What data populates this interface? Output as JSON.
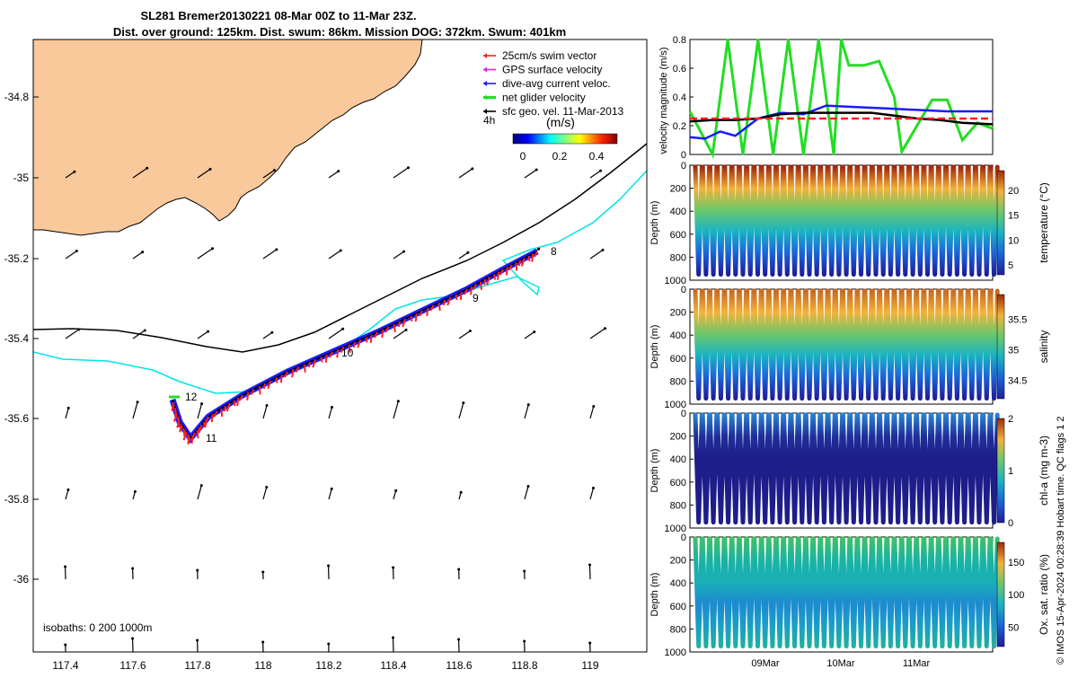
{
  "title": {
    "line1": "SL281 Bremer20130221 08-Mar 00Z to 11-Mar 23Z.",
    "line2": "Dist. over ground: 125km. Dist. swum: 86km. Mission DOG: 372km. Swum: 401km"
  },
  "map": {
    "xticks": [
      "117.4",
      "117.6",
      "117.8",
      "118",
      "118.2",
      "118.4",
      "118.6",
      "118.8",
      "119"
    ],
    "yticks": [
      "-34.8",
      "-35",
      "-35.2",
      "-35.4",
      "-35.6",
      "-35.8",
      "-36"
    ],
    "isobaths_label": "isobaths: 0   200  1000m",
    "waypoints": [
      "8",
      "9",
      "10",
      "11",
      "12"
    ],
    "land_color": "#f9c99b",
    "isobath_200_color": "#00e5e5",
    "isobath_1000_color": "#000000"
  },
  "legend": {
    "items": [
      {
        "label": "25cm/s swim vector",
        "color": "#ff2020"
      },
      {
        "label": "GPS surface velocity",
        "color": "#e020e0"
      },
      {
        "label": "dive-avg current veloc.",
        "color": "#1a1aff"
      },
      {
        "label": "net glider velocity",
        "color": "#22dd22"
      },
      {
        "label": "sfc geo. vel. 11-Mar-2013",
        "color": "#000000"
      }
    ],
    "time_label": "4h",
    "colorbar_label": "(m/s)",
    "colorbar_ticks": [
      "0",
      "0.2",
      "0.4"
    ]
  },
  "panels": {
    "velocity": {
      "ylabel": "velocity magnitude (m/s)",
      "yticks": [
        "0",
        "0.2",
        "0.4",
        "0.6",
        "0.8"
      ]
    },
    "temperature": {
      "label": "temperature (°C)",
      "cticks": [
        "5",
        "10",
        "15",
        "20"
      ]
    },
    "salinity": {
      "label": "salinity",
      "cticks": [
        "34.5",
        "35",
        "35.5"
      ]
    },
    "chla": {
      "label": "chl-a  (mg m-3)",
      "cticks": [
        "0",
        "1",
        "2"
      ]
    },
    "oxygen": {
      "label": "Ox. sat. ratio (%)",
      "cticks": [
        "50",
        "100",
        "150"
      ]
    },
    "depth_label": "Depth (m)",
    "depth_ticks": [
      "0",
      "200",
      "400",
      "600",
      "800",
      "1000"
    ],
    "time_ticks": [
      "09Mar",
      "10Mar",
      "11Mar"
    ]
  },
  "footer": "© IMOS 15-Apr-2024 00:28:39 Hobart time. QC flags 1  2",
  "chart_data": {
    "type": "line",
    "title": "SL281 Bremer20130221 08-Mar 00Z to 11-Mar 23Z.",
    "velocity_series": [
      {
        "name": "net glider velocity",
        "color": "#22dd22",
        "x_days_from_08Mar": [
          0,
          0.3,
          0.5,
          0.7,
          0.9,
          1.1,
          1.3,
          1.5,
          1.7,
          1.9,
          2.0,
          2.1,
          2.3,
          2.5,
          2.7,
          2.8,
          3.0,
          3.2,
          3.4,
          3.6,
          3.8,
          4.0
        ],
        "values": [
          0.3,
          0.0,
          0.8,
          0.0,
          0.8,
          0.0,
          0.8,
          0.0,
          0.8,
          0.0,
          0.8,
          0.62,
          0.62,
          0.65,
          0.4,
          0.02,
          0.2,
          0.38,
          0.38,
          0.1,
          0.22,
          0.18
        ]
      },
      {
        "name": "dive-avg current veloc.",
        "color": "#1a1aff",
        "x_days_from_08Mar": [
          0,
          0.2,
          0.4,
          0.6,
          0.9,
          1.2,
          1.5,
          1.8,
          2.2,
          2.6,
          3.0,
          3.4,
          4.0
        ],
        "values": [
          0.12,
          0.11,
          0.16,
          0.13,
          0.25,
          0.29,
          0.28,
          0.34,
          0.33,
          0.32,
          0.31,
          0.3,
          0.3
        ]
      },
      {
        "name": "sfc geo. vel. 11-Mar-2013",
        "color": "#000000",
        "x_days_from_08Mar": [
          0,
          0.3,
          0.6,
          0.9,
          1.2,
          1.5,
          1.8,
          2.1,
          2.4,
          2.7,
          3.0,
          3.3,
          3.6,
          4.0
        ],
        "values": [
          0.23,
          0.24,
          0.24,
          0.25,
          0.28,
          0.29,
          0.29,
          0.29,
          0.29,
          0.27,
          0.25,
          0.24,
          0.22,
          0.21
        ]
      },
      {
        "name": "25cm/s swim vector",
        "color": "#ff2020",
        "x_days_from_08Mar": [
          0,
          4.0
        ],
        "values": [
          0.25,
          0.25
        ]
      }
    ],
    "dives": {
      "count": 41,
      "max_depth_m": 950,
      "depth_range": [
        0,
        1000
      ]
    },
    "clims": {
      "temperature": [
        3,
        24
      ],
      "salinity": [
        34.2,
        35.9
      ],
      "chla": [
        0,
        2
      ],
      "oxygen": [
        20,
        180
      ]
    }
  }
}
